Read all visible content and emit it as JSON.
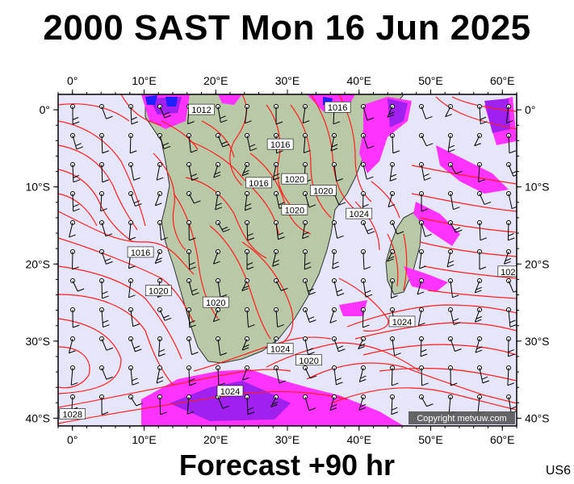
{
  "header": {
    "title": "2000 SAST Mon 16 Jun 2025"
  },
  "footer": {
    "forecast": "Forecast +90 hr",
    "code": "US6"
  },
  "copyright": "Copyright metvuw.com",
  "colors": {
    "ocean": "#e6e6fa",
    "land": "#b9c9a8",
    "isobar": "#ff1e1e",
    "rain_light": "#ff33ff",
    "rain_heavy": "#a020f0",
    "rain_extreme": "#1e1eff"
  },
  "map": {
    "lon_range": [
      -2,
      62
    ],
    "lat_range": [
      -41,
      2
    ],
    "lon_ticks": [
      {
        "lon": 0,
        "label": "0°"
      },
      {
        "lon": 10,
        "label": "10°E"
      },
      {
        "lon": 20,
        "label": "20°E"
      },
      {
        "lon": 30,
        "label": "30°E"
      },
      {
        "lon": 40,
        "label": "40°E"
      },
      {
        "lon": 50,
        "label": "50°E"
      },
      {
        "lon": 60,
        "label": "60°E"
      }
    ],
    "lat_ticks": [
      {
        "lat": 0,
        "label": "0°"
      },
      {
        "lat": -10,
        "label": "10°S"
      },
      {
        "lat": -20,
        "label": "20°S"
      },
      {
        "lat": -30,
        "label": "30°S"
      },
      {
        "lat": -40,
        "label": "40°S"
      }
    ],
    "isobar_labels": [
      {
        "text": "1012",
        "lon": 18,
        "lat": 0
      },
      {
        "text": "1016",
        "lon": 37,
        "lat": 0.3
      },
      {
        "text": "1016",
        "lon": 29,
        "lat": -4.5
      },
      {
        "text": "1016",
        "lon": 26,
        "lat": -9.5
      },
      {
        "text": "1020",
        "lon": 31,
        "lat": -9
      },
      {
        "text": "1020",
        "lon": 35,
        "lat": -10.5
      },
      {
        "text": "1020",
        "lon": 31,
        "lat": -13
      },
      {
        "text": "1024",
        "lon": 40,
        "lat": -13.5
      },
      {
        "text": "1016",
        "lon": 9.5,
        "lat": -18.5
      },
      {
        "text": "1020",
        "lon": 12,
        "lat": -23.5
      },
      {
        "text": "1020",
        "lon": 20,
        "lat": -25
      },
      {
        "text": "1024",
        "lon": 29,
        "lat": -31
      },
      {
        "text": "1020",
        "lon": 33,
        "lat": -32.5
      },
      {
        "text": "1024",
        "lon": 46,
        "lat": -27.5
      },
      {
        "text": "1024",
        "lon": 22,
        "lat": -36.5
      },
      {
        "text": "1028",
        "lon": 0,
        "lat": -39.5
      },
      {
        "text": "102",
        "lon": 60.8,
        "lat": -21
      }
    ]
  }
}
